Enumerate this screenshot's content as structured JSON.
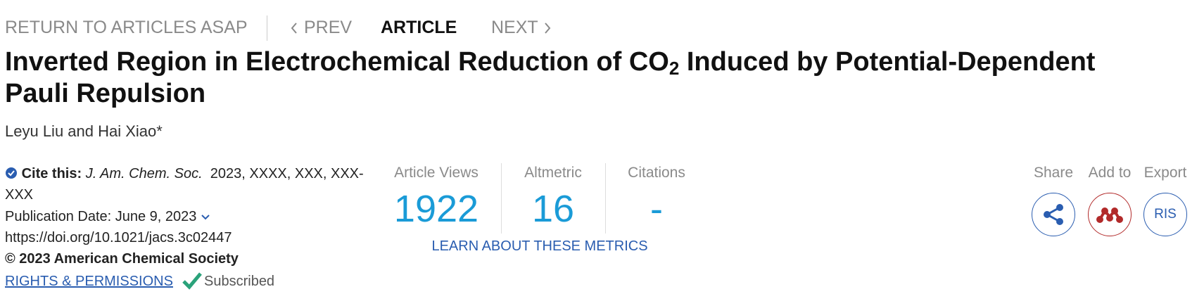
{
  "nav": {
    "return": "RETURN TO ARTICLES ASAP",
    "prev": "PREV",
    "current": "ARTICLE",
    "next": "NEXT"
  },
  "title": {
    "main": "Inverted Region in Electrochemical Reduction of CO",
    "subscript": "2",
    "rest": " Induced by Potential-Dependent Pauli Repulsion"
  },
  "authors": "Leyu Liu and Hai Xiao*",
  "citation": {
    "label": "Cite this:",
    "journal": "J. Am. Chem. Soc.",
    "details": "2023, XXXX, XXX, XXX-XXX"
  },
  "publication_date": "Publication Date: June 9, 2023",
  "doi": "https://doi.org/10.1021/jacs.3c02447",
  "copyright": "© 2023 American Chemical Society",
  "rights": "RIGHTS & PERMISSIONS",
  "access": "Subscribed",
  "metrics": [
    {
      "label": "Article Views",
      "value": 1922
    },
    {
      "label": "Altmetric",
      "value": 16
    },
    {
      "label": "Citations",
      "value": "-"
    }
  ],
  "metrics_link": "LEARN ABOUT THESE METRICS",
  "actions": [
    {
      "label": "Share"
    },
    {
      "label": "Add to"
    },
    {
      "label": "Export",
      "button": "RIS"
    }
  ]
}
